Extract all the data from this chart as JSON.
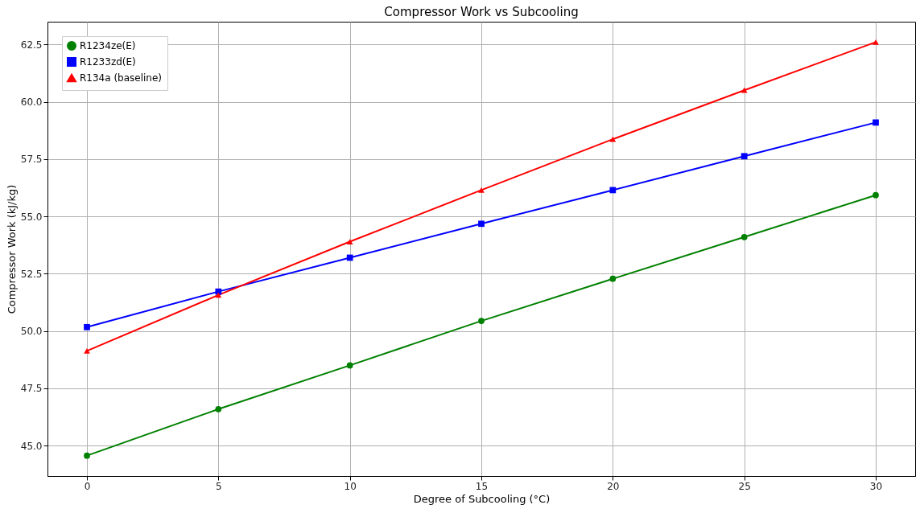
{
  "chart_data": {
    "type": "line",
    "title": "Compressor Work vs Subcooling",
    "xlabel": "Degree of Subcooling (°C)",
    "ylabel": "Compressor Work (kJ/kg)",
    "x": [
      0,
      5,
      10,
      15,
      20,
      25,
      30
    ],
    "series": [
      {
        "name": "R1234ze(E)",
        "color": "#008000",
        "marker": "circle",
        "values": [
          44.56,
          46.59,
          48.5,
          50.44,
          52.28,
          54.1,
          55.93
        ]
      },
      {
        "name": "R1233zd(E)",
        "color": "#0000ff",
        "marker": "square",
        "values": [
          50.17,
          51.72,
          53.2,
          54.68,
          56.15,
          57.63,
          59.1
        ]
      },
      {
        "name": "R134a (baseline)",
        "color": "#ff0000",
        "marker": "triangle",
        "values": [
          49.13,
          51.57,
          53.9,
          56.15,
          58.37,
          60.51,
          62.61
        ]
      }
    ],
    "xlim": [
      -1.5,
      31.5
    ],
    "xticks": [
      0,
      5,
      10,
      15,
      20,
      25,
      30
    ],
    "ylim": [
      43.67,
      63.5
    ],
    "yticks": [
      {
        "value": 45,
        "label": "45.0"
      },
      {
        "value": 47.5,
        "label": "47.5"
      },
      {
        "value": 50,
        "label": "50.0"
      },
      {
        "value": 52.5,
        "label": "52.5"
      },
      {
        "value": 55,
        "label": "55.0"
      },
      {
        "value": 57.5,
        "label": "57.5"
      },
      {
        "value": 60,
        "label": "60.0"
      },
      {
        "value": 62.5,
        "label": "62.5"
      }
    ],
    "grid": true,
    "legend": "top left",
    "line_style": "solid"
  }
}
